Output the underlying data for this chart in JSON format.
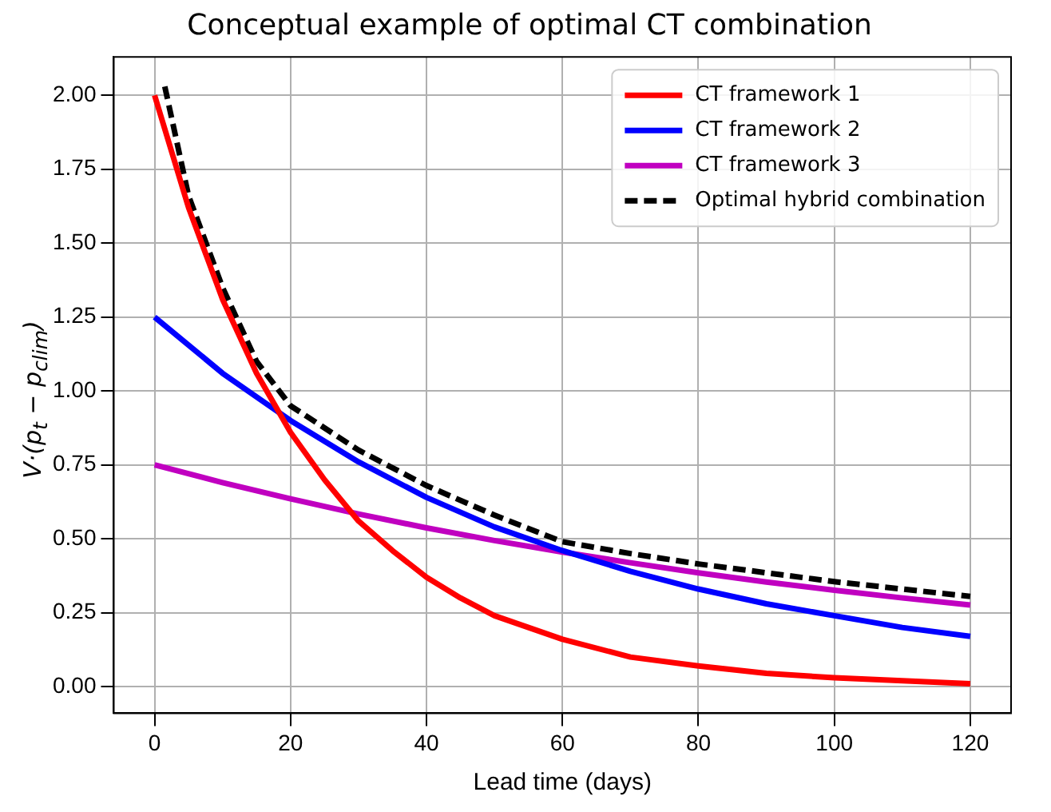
{
  "chart_data": {
    "type": "line",
    "title": "Conceptual example of optimal CT combination",
    "xlabel": "Lead time (days)",
    "ylabel": "V·(p$_{t}$ − p$_{clim}$)",
    "xlim": [
      -6,
      126
    ],
    "xticks": [
      0,
      20,
      40,
      60,
      80,
      100,
      120
    ],
    "ylim": [
      -0.09,
      2.13
    ],
    "yticks": [
      {
        "value": 0,
        "label": "0.00"
      },
      {
        "value": 0.25,
        "label": "0.25"
      },
      {
        "value": 0.5,
        "label": "0.50"
      },
      {
        "value": 0.75,
        "label": "0.75"
      },
      {
        "value": 1,
        "label": "1.00"
      },
      {
        "value": 1.25,
        "label": "1.25"
      },
      {
        "value": 1.5,
        "label": "1.50"
      },
      {
        "value": 1.75,
        "label": "1.75"
      },
      {
        "value": 2,
        "label": "2.00"
      }
    ],
    "grid": true,
    "legend": "top right",
    "marker": "none",
    "series": [
      {
        "name": "CT framework 1",
        "color": "#ff0000",
        "line_style": "solid",
        "x": [
          0,
          5,
          10,
          15,
          20,
          25,
          30,
          35,
          40,
          45,
          50,
          55,
          60,
          70,
          80,
          90,
          100,
          110,
          120
        ],
        "values": [
          2.0,
          1.62,
          1.31,
          1.06,
          0.86,
          0.7,
          0.56,
          0.46,
          0.37,
          0.3,
          0.24,
          0.2,
          0.16,
          0.1,
          0.07,
          0.045,
          0.03,
          0.02,
          0.01
        ]
      },
      {
        "name": "CT framework 2",
        "color": "#0000ff",
        "line_style": "solid",
        "x": [
          0,
          10,
          20,
          30,
          40,
          50,
          60,
          70,
          80,
          90,
          100,
          110,
          120
        ],
        "values": [
          1.25,
          1.06,
          0.9,
          0.76,
          0.64,
          0.54,
          0.46,
          0.39,
          0.33,
          0.28,
          0.24,
          0.2,
          0.17
        ]
      },
      {
        "name": "CT framework 3",
        "color": "#c000c0",
        "line_style": "solid",
        "x": [
          0,
          10,
          20,
          30,
          40,
          50,
          60,
          70,
          80,
          90,
          100,
          110,
          120
        ],
        "values": [
          0.75,
          0.69,
          0.635,
          0.584,
          0.537,
          0.494,
          0.455,
          0.419,
          0.385,
          0.354,
          0.326,
          0.3,
          0.276
        ]
      },
      {
        "name": "Optimal hybrid combination",
        "color": "#000000",
        "line_style": "dashed",
        "x": [
          1.5,
          5,
          10,
          15,
          20,
          30,
          40,
          50,
          60,
          70,
          80,
          90,
          100,
          110,
          120
        ],
        "values": [
          2.03,
          1.66,
          1.35,
          1.1,
          0.95,
          0.8,
          0.68,
          0.58,
          0.49,
          0.45,
          0.415,
          0.385,
          0.355,
          0.33,
          0.305
        ]
      }
    ]
  }
}
